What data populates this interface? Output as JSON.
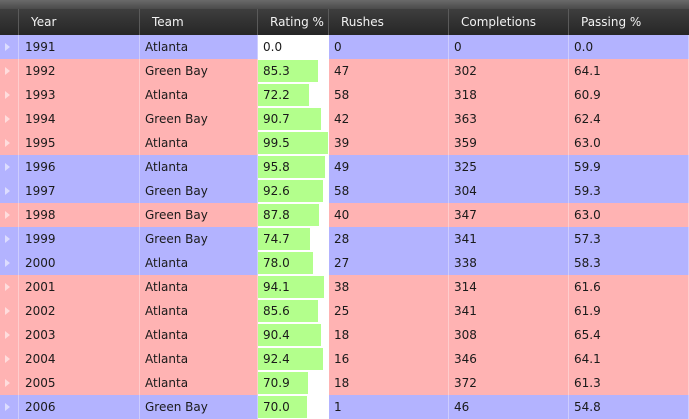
{
  "columns": {
    "year": "Year",
    "team": "Team",
    "rating": "Rating %",
    "rushes": "Rushes",
    "completions": "Completions",
    "passing": "Passing %"
  },
  "colors": {
    "header_bg": "#2e2e2e",
    "row_blue": "#b3b3ff",
    "row_red": "#ffb3b3",
    "rating_bar": "#b3ff8c"
  },
  "rating_max": 100,
  "rows": [
    {
      "year": "1991",
      "team": "Atlanta",
      "rating": "0.0",
      "rushes": "0",
      "completions": "0",
      "passing": "0.0",
      "tone": "blue"
    },
    {
      "year": "1992",
      "team": "Green Bay",
      "rating": "85.3",
      "rushes": "47",
      "completions": "302",
      "passing": "64.1",
      "tone": "red"
    },
    {
      "year": "1993",
      "team": "Atlanta",
      "rating": "72.2",
      "rushes": "58",
      "completions": "318",
      "passing": "60.9",
      "tone": "red"
    },
    {
      "year": "1994",
      "team": "Green Bay",
      "rating": "90.7",
      "rushes": "42",
      "completions": "363",
      "passing": "62.4",
      "tone": "red"
    },
    {
      "year": "1995",
      "team": "Atlanta",
      "rating": "99.5",
      "rushes": "39",
      "completions": "359",
      "passing": "63.0",
      "tone": "red"
    },
    {
      "year": "1996",
      "team": "Atlanta",
      "rating": "95.8",
      "rushes": "49",
      "completions": "325",
      "passing": "59.9",
      "tone": "blue"
    },
    {
      "year": "1997",
      "team": "Green Bay",
      "rating": "92.6",
      "rushes": "58",
      "completions": "304",
      "passing": "59.3",
      "tone": "blue"
    },
    {
      "year": "1998",
      "team": "Green Bay",
      "rating": "87.8",
      "rushes": "40",
      "completions": "347",
      "passing": "63.0",
      "tone": "red"
    },
    {
      "year": "1999",
      "team": "Green Bay",
      "rating": "74.7",
      "rushes": "28",
      "completions": "341",
      "passing": "57.3",
      "tone": "blue"
    },
    {
      "year": "2000",
      "team": "Atlanta",
      "rating": "78.0",
      "rushes": "27",
      "completions": "338",
      "passing": "58.3",
      "tone": "blue"
    },
    {
      "year": "2001",
      "team": "Atlanta",
      "rating": "94.1",
      "rushes": "38",
      "completions": "314",
      "passing": "61.6",
      "tone": "red"
    },
    {
      "year": "2002",
      "team": "Atlanta",
      "rating": "85.6",
      "rushes": "25",
      "completions": "341",
      "passing": "61.9",
      "tone": "red"
    },
    {
      "year": "2003",
      "team": "Atlanta",
      "rating": "90.4",
      "rushes": "18",
      "completions": "308",
      "passing": "65.4",
      "tone": "red"
    },
    {
      "year": "2004",
      "team": "Atlanta",
      "rating": "92.4",
      "rushes": "16",
      "completions": "346",
      "passing": "64.1",
      "tone": "red"
    },
    {
      "year": "2005",
      "team": "Atlanta",
      "rating": "70.9",
      "rushes": "18",
      "completions": "372",
      "passing": "61.3",
      "tone": "red"
    },
    {
      "year": "2006",
      "team": "Green Bay",
      "rating": "70.0",
      "rushes": "1",
      "completions": "46",
      "passing": "54.8",
      "tone": "blue"
    }
  ]
}
